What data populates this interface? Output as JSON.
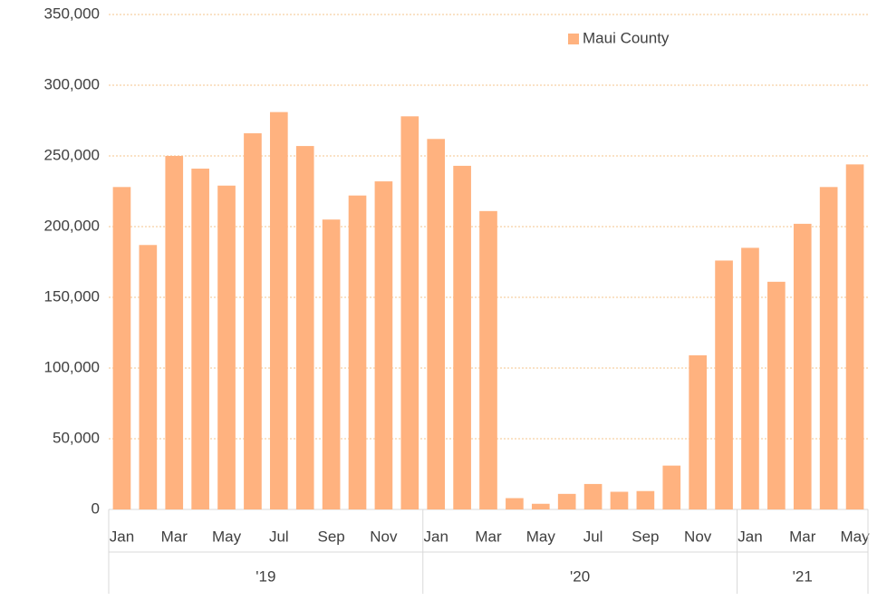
{
  "chart_data": {
    "type": "bar",
    "series": [
      {
        "name": "Maui County",
        "color": "#ffb27f",
        "values": [
          228000,
          187000,
          250000,
          241000,
          229000,
          266000,
          281000,
          257000,
          205000,
          222000,
          232000,
          278000,
          262000,
          243000,
          211000,
          8000,
          4000,
          11000,
          18000,
          12500,
          13000,
          31000,
          109000,
          176000,
          185000,
          161000,
          202000,
          228000,
          244000
        ]
      }
    ],
    "categories": [
      "Jan",
      null,
      "Mar",
      null,
      "May",
      null,
      "Jul",
      null,
      "Sep",
      null,
      "Nov",
      null,
      "Jan",
      null,
      "Mar",
      null,
      "May",
      null,
      "Jul",
      null,
      "Sep",
      null,
      "Nov",
      null,
      "Jan",
      null,
      "Mar",
      null,
      "May"
    ],
    "groups": [
      {
        "label": "'19",
        "span": 12
      },
      {
        "label": "'20",
        "span": 12
      },
      {
        "label": "'21",
        "span": 5
      }
    ],
    "ylim": [
      0,
      350000
    ],
    "yticks": [
      0,
      {
        "value": 50000,
        "label": "50,000"
      },
      {
        "value": 100000,
        "label": "100,000"
      },
      {
        "value": 150000,
        "label": "150,000"
      },
      {
        "value": 200000,
        "label": "200,000"
      },
      {
        "value": 250000,
        "label": "250,000"
      },
      {
        "value": 300000,
        "label": "300,000"
      },
      {
        "value": 350000,
        "label": "350,000"
      }
    ],
    "grid": true,
    "legend": "top-right"
  }
}
